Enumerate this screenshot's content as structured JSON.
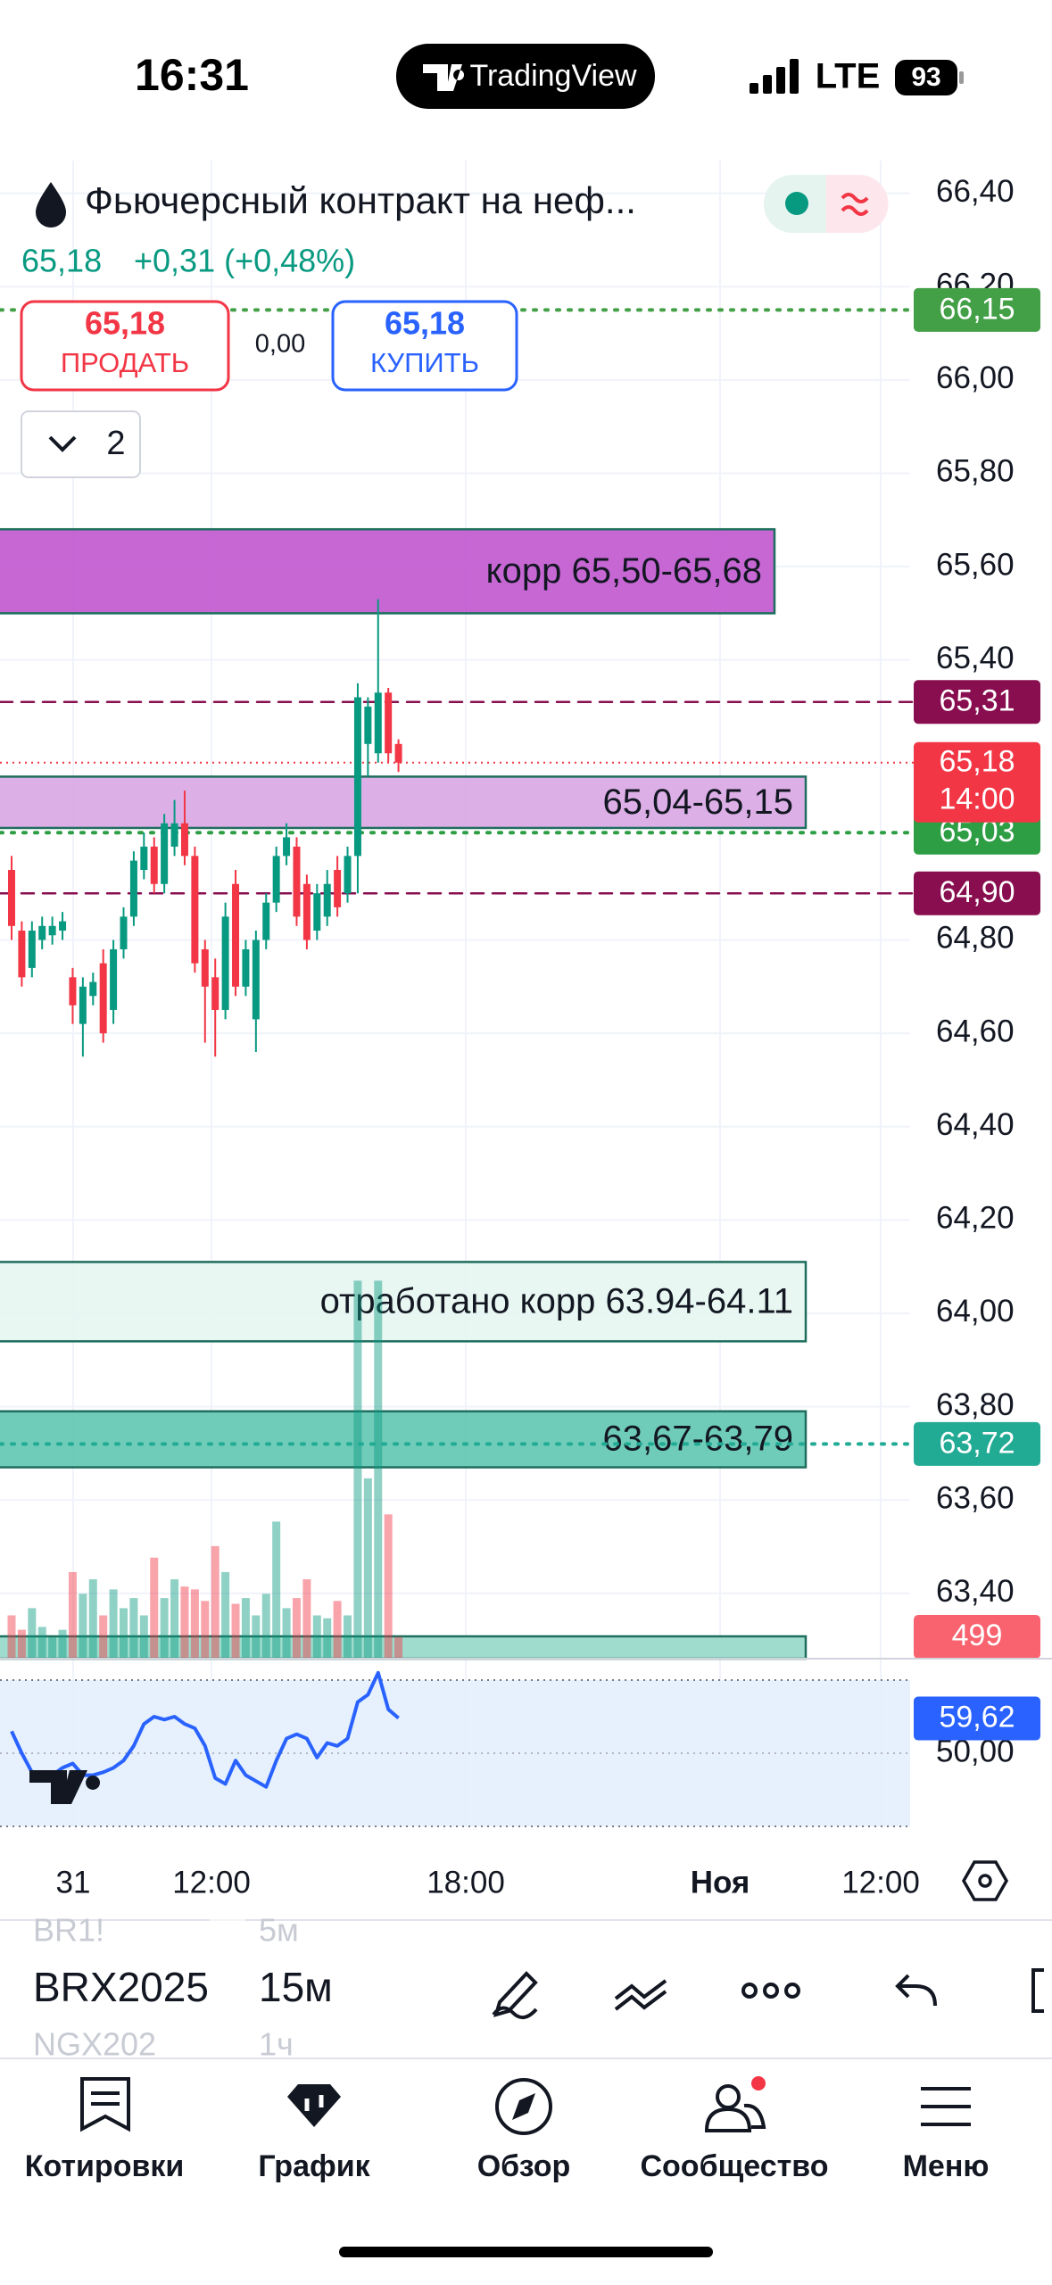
{
  "status_bar": {
    "time": "16:31",
    "app": "TradingView",
    "network": "LTE",
    "battery": "93"
  },
  "header": {
    "title": "Фьючерсный контракт на неф...",
    "price": "65,18",
    "change": "+0,31 (+0,48%)"
  },
  "trade_panel": {
    "sell_price": "65,18",
    "sell_label": "ПРОДАТЬ",
    "spread": "0,00",
    "buy_price": "65,18",
    "buy_label": "КУПИТЬ",
    "layers": "2"
  },
  "chart_data": {
    "type": "candlestick",
    "ylim": [
      63.26,
      66.47
    ],
    "yticks": [
      {
        "value": 66.4,
        "label": "66,40"
      },
      {
        "value": 66.2,
        "label": "66,20"
      },
      {
        "value": 66.0,
        "label": "66,00"
      },
      {
        "value": 65.8,
        "label": "65,80"
      },
      {
        "value": 65.6,
        "label": "65,60"
      },
      {
        "value": 65.4,
        "label": "65,40"
      },
      {
        "value": 64.8,
        "label": "64,80"
      },
      {
        "value": 64.6,
        "label": "64,60"
      },
      {
        "value": 64.4,
        "label": "64,40"
      },
      {
        "value": 64.2,
        "label": "64,20"
      },
      {
        "value": 64.0,
        "label": "64,00"
      },
      {
        "value": 63.8,
        "label": "63,80"
      },
      {
        "value": 63.6,
        "label": "63,60"
      },
      {
        "value": 63.4,
        "label": "63,40"
      }
    ],
    "x_labels": [
      "31",
      "12:00",
      "18:00",
      "Ноя",
      "12:00"
    ],
    "up_color": "#089981",
    "down_color": "#f23645",
    "open": [
      64.95,
      64.82,
      64.74,
      64.8,
      64.81,
      64.82,
      64.72,
      64.62,
      64.68,
      64.75,
      64.65,
      64.78,
      64.85,
      64.95,
      65.0,
      64.92,
      65.0,
      65.05,
      64.98,
      64.78,
      64.72,
      64.65,
      64.92,
      64.7,
      64.63,
      64.8,
      64.88,
      64.98,
      65.0,
      64.92,
      64.82,
      64.85,
      64.95,
      64.9,
      64.98,
      65.22,
      65.2,
      65.33,
      65.22
    ],
    "high": [
      64.98,
      64.84,
      64.84,
      64.85,
      64.85,
      64.86,
      64.74,
      64.72,
      64.73,
      64.78,
      64.8,
      64.87,
      64.99,
      65.03,
      65.02,
      65.07,
      65.1,
      65.12,
      65.0,
      64.8,
      64.76,
      64.88,
      64.95,
      64.8,
      64.82,
      64.9,
      65.0,
      65.05,
      65.02,
      64.94,
      64.92,
      64.95,
      64.98,
      65.0,
      65.35,
      65.32,
      65.53,
      65.34,
      65.23
    ],
    "low": [
      64.8,
      64.7,
      64.72,
      64.78,
      64.79,
      64.8,
      64.62,
      64.55,
      64.66,
      64.58,
      64.62,
      64.76,
      64.83,
      64.93,
      64.9,
      64.9,
      64.98,
      64.96,
      64.73,
      64.58,
      64.55,
      64.63,
      64.68,
      64.68,
      64.56,
      64.78,
      64.86,
      64.96,
      64.83,
      64.78,
      64.8,
      64.83,
      64.85,
      64.88,
      64.9,
      65.15,
      65.18,
      65.18,
      65.16
    ],
    "close": [
      64.83,
      64.72,
      64.82,
      64.83,
      64.83,
      64.84,
      64.66,
      64.7,
      64.71,
      64.6,
      64.78,
      64.85,
      64.97,
      65.0,
      64.92,
      65.05,
      65.05,
      64.98,
      64.75,
      64.7,
      64.65,
      64.85,
      64.7,
      64.78,
      64.8,
      64.88,
      64.98,
      65.02,
      64.85,
      64.8,
      64.9,
      64.92,
      64.87,
      64.98,
      65.32,
      65.3,
      65.33,
      65.2,
      65.18
    ],
    "volume": [
      990,
      660,
      1155,
      726,
      495,
      660,
      1980,
      1485,
      1815,
      990,
      1584,
      1155,
      1386,
      990,
      2310,
      1386,
      1815,
      1650,
      1584,
      1320,
      2574,
      1980,
      1254,
      1386,
      990,
      1485,
      3135,
      1155,
      1386,
      1815,
      990,
      924,
      1320,
      990,
      8646,
      4125,
      8646,
      3300,
      499
    ],
    "volume_label": {
      "value": 499,
      "label": "499"
    },
    "price_lines": [
      {
        "value": 66.15,
        "label": "66,15",
        "color": "#43a047",
        "style": "dotted"
      },
      {
        "value": 65.31,
        "label": "65,31",
        "color": "#880e4f",
        "style": "dashed"
      },
      {
        "value": 65.03,
        "label": "65,03",
        "color": "#2e9e45",
        "style": "dotted"
      },
      {
        "value": 64.9,
        "label": "64,90",
        "color": "#880e4f",
        "style": "dashed"
      },
      {
        "value": 63.72,
        "label": "63,72",
        "color": "#22ab94",
        "style": "dotted"
      }
    ],
    "last_price": {
      "value": 65.18,
      "label": "65,18",
      "countdown": "14:00",
      "color": "#f23645"
    },
    "zones": [
      {
        "label": "корр 65,50-65,68",
        "low": 65.5,
        "high": 65.68,
        "color": "#c057cf"
      },
      {
        "label": "65,04-65,15",
        "low": 65.04,
        "high": 65.15,
        "color": "#d7a1e3"
      },
      {
        "label": "отработано корр 63.94-64.11",
        "low": 63.94,
        "high": 64.11,
        "color": "#e6f6f1"
      },
      {
        "label": "63,67-63,79",
        "low": 63.67,
        "high": 63.79,
        "color": "#5fc7b0"
      }
    ],
    "rsi": {
      "ylim": [
        30,
        70
      ],
      "yticks": [
        {
          "value": 50,
          "label": "50,00"
        }
      ],
      "color": "#2962ff",
      "values": [
        56,
        50,
        44.8,
        43.2,
        44,
        46,
        47.2,
        44,
        44,
        44.8,
        46,
        48,
        52,
        58,
        60,
        59.2,
        60,
        58,
        56.8,
        52,
        43.2,
        41.6,
        48,
        44,
        42.4,
        40.8,
        48,
        54,
        55.2,
        54,
        48.8,
        52.8,
        52,
        54,
        64,
        66,
        72,
        62,
        59.62
      ],
      "last": {
        "value": 59.62,
        "label": "59,62"
      }
    }
  },
  "symbol_picker": {
    "symbols": [
      "BR1!",
      "BRX2025",
      "NGX202"
    ],
    "intervals": [
      "5м",
      "15м",
      "1ч"
    ]
  },
  "tabs": [
    "Котировки",
    "График",
    "Обзор",
    "Сообщество",
    "Меню"
  ]
}
